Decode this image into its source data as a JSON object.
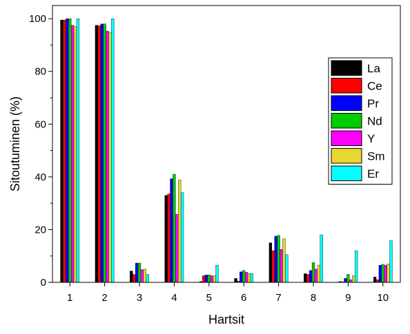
{
  "chart_data": {
    "type": "bar",
    "title": "",
    "xlabel": "Hartsit",
    "ylabel": "Sitoutuminen (%)",
    "ylim": [
      0,
      105
    ],
    "yticks": [
      0,
      20,
      40,
      60,
      80,
      100
    ],
    "grid": false,
    "legend_position": "right",
    "categories": [
      "1",
      "2",
      "3",
      "4",
      "5",
      "6",
      "7",
      "8",
      "9",
      "10"
    ],
    "series": [
      {
        "name": "La",
        "color": "#000000",
        "values": [
          99.5,
          97.5,
          4.3,
          33.0,
          0.3,
          1.5,
          15.0,
          3.3,
          0.3,
          2.0
        ]
      },
      {
        "name": "Ce",
        "color": "#ff0000",
        "values": [
          99.5,
          97.3,
          3.0,
          33.5,
          2.5,
          0.5,
          12.0,
          3.0,
          0.2,
          1.0
        ]
      },
      {
        "name": "Pr",
        "color": "#0000ff",
        "values": [
          100.0,
          98.0,
          7.3,
          39.3,
          2.8,
          4.0,
          17.5,
          4.5,
          1.5,
          6.5
        ]
      },
      {
        "name": "Nd",
        "color": "#00cc00",
        "values": [
          100.0,
          98.0,
          7.3,
          41.0,
          2.8,
          4.5,
          17.8,
          7.5,
          3.0,
          6.8
        ]
      },
      {
        "name": "Y",
        "color": "#ff00ff",
        "values": [
          97.5,
          95.3,
          4.8,
          25.8,
          2.5,
          3.8,
          12.5,
          5.0,
          1.0,
          6.5
        ]
      },
      {
        "name": "Sm",
        "color": "#e6d830",
        "values": [
          97.0,
          94.8,
          5.0,
          38.8,
          2.5,
          3.3,
          16.5,
          6.5,
          2.5,
          7.0
        ]
      },
      {
        "name": "Er",
        "color": "#00ffff",
        "values": [
          100.0,
          100.0,
          3.0,
          34.0,
          6.5,
          3.3,
          10.5,
          18.0,
          12.0,
          15.8
        ]
      }
    ]
  }
}
